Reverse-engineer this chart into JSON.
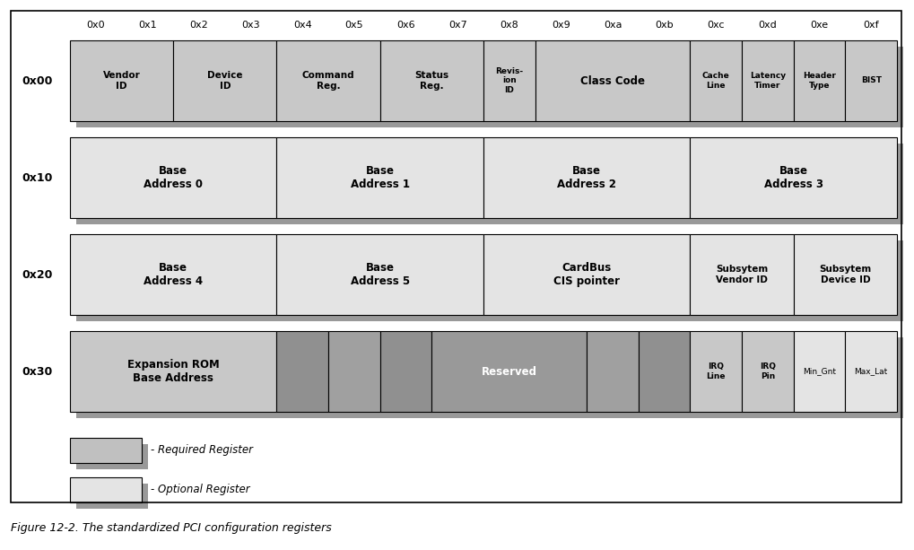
{
  "fig_caption": "Figure 12-2. The standardized PCI configuration registers",
  "col_labels": [
    "0x0",
    "0x1",
    "0x2",
    "0x3",
    "0x4",
    "0x5",
    "0x6",
    "0x7",
    "0x8",
    "0x9",
    "0xa",
    "0xb",
    "0xc",
    "0xd",
    "0xe",
    "0xf"
  ],
  "bg_color": "#f2f2f2",
  "outer_bg": "#ffffff",
  "required_color": "#c0c0c0",
  "optional_color": "#e4e4e4",
  "reserved_color": "#999999",
  "reserved_dark": "#888888",
  "shadow_color": "#999999",
  "row_bg": "#f2f2f2",
  "rows": [
    {
      "label": "0x00",
      "cells": [
        {
          "text": "Vendor\nID",
          "span": 2,
          "color": "#c8c8c8",
          "bold": true,
          "white_text": false
        },
        {
          "text": "Device\nID",
          "span": 2,
          "color": "#c8c8c8",
          "bold": true,
          "white_text": false
        },
        {
          "text": "Command\nReg.",
          "span": 2,
          "color": "#c8c8c8",
          "bold": true,
          "white_text": false
        },
        {
          "text": "Status\nReg.",
          "span": 2,
          "color": "#c8c8c8",
          "bold": true,
          "white_text": false
        },
        {
          "text": "Revis-\nion\nID",
          "span": 1,
          "color": "#c8c8c8",
          "bold": true,
          "white_text": false
        },
        {
          "text": "Class Code",
          "span": 3,
          "color": "#c8c8c8",
          "bold": true,
          "white_text": false
        },
        {
          "text": "Cache\nLine",
          "span": 1,
          "color": "#c8c8c8",
          "bold": true,
          "white_text": false
        },
        {
          "text": "Latency\nTimer",
          "span": 1,
          "color": "#c8c8c8",
          "bold": true,
          "white_text": false
        },
        {
          "text": "Header\nType",
          "span": 1,
          "color": "#c8c8c8",
          "bold": true,
          "white_text": false
        },
        {
          "text": "BIST",
          "span": 1,
          "color": "#c8c8c8",
          "bold": true,
          "white_text": false
        }
      ]
    },
    {
      "label": "0x10",
      "cells": [
        {
          "text": "Base\nAddress 0",
          "span": 4,
          "color": "#e4e4e4",
          "bold": true,
          "white_text": false
        },
        {
          "text": "Base\nAddress 1",
          "span": 4,
          "color": "#e4e4e4",
          "bold": true,
          "white_text": false
        },
        {
          "text": "Base\nAddress 2",
          "span": 4,
          "color": "#e4e4e4",
          "bold": true,
          "white_text": false
        },
        {
          "text": "Base\nAddress 3",
          "span": 4,
          "color": "#e4e4e4",
          "bold": true,
          "white_text": false
        }
      ]
    },
    {
      "label": "0x20",
      "cells": [
        {
          "text": "Base\nAddress 4",
          "span": 4,
          "color": "#e4e4e4",
          "bold": true,
          "white_text": false
        },
        {
          "text": "Base\nAddress 5",
          "span": 4,
          "color": "#e4e4e4",
          "bold": true,
          "white_text": false
        },
        {
          "text": "CardBus\nCIS pointer",
          "span": 4,
          "color": "#e4e4e4",
          "bold": true,
          "white_text": false
        },
        {
          "text": "Subsytem\nVendor ID",
          "span": 2,
          "color": "#e4e4e4",
          "bold": true,
          "white_text": false
        },
        {
          "text": "Subsytem\nDevice ID",
          "span": 2,
          "color": "#e4e4e4",
          "bold": true,
          "white_text": false
        }
      ]
    },
    {
      "label": "0x30",
      "cells": [
        {
          "text": "Expansion ROM\nBase Address",
          "span": 4,
          "color": "#c8c8c8",
          "bold": true,
          "white_text": false
        },
        {
          "text": "",
          "span": 1,
          "color": "#909090",
          "bold": false,
          "white_text": false
        },
        {
          "text": "",
          "span": 1,
          "color": "#a0a0a0",
          "bold": false,
          "white_text": false
        },
        {
          "text": "",
          "span": 1,
          "color": "#909090",
          "bold": false,
          "white_text": false
        },
        {
          "text": "Reserved",
          "span": 3,
          "color": "#999999",
          "bold": true,
          "white_text": true
        },
        {
          "text": "",
          "span": 1,
          "color": "#a0a0a0",
          "bold": false,
          "white_text": false
        },
        {
          "text": "",
          "span": 1,
          "color": "#909090",
          "bold": false,
          "white_text": false
        },
        {
          "text": "IRQ\nLine",
          "span": 1,
          "color": "#c8c8c8",
          "bold": true,
          "white_text": false
        },
        {
          "text": "IRQ\nPin",
          "span": 1,
          "color": "#c8c8c8",
          "bold": true,
          "white_text": false
        },
        {
          "text": "Min_Gnt",
          "span": 1,
          "color": "#e4e4e4",
          "bold": false,
          "white_text": false
        },
        {
          "text": "Max_Lat",
          "span": 1,
          "color": "#e4e4e4",
          "bold": false,
          "white_text": false
        }
      ]
    }
  ]
}
